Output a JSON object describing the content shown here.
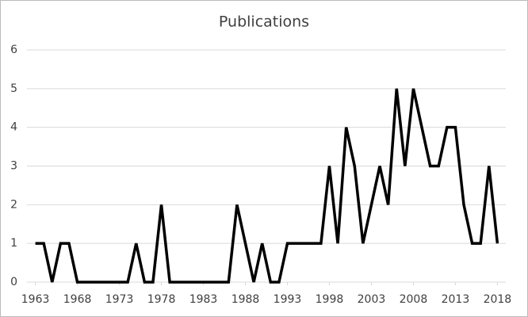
{
  "chart_data": {
    "type": "line",
    "title": "Publications",
    "x": [
      1963,
      1964,
      1965,
      1966,
      1967,
      1968,
      1969,
      1970,
      1971,
      1972,
      1973,
      1974,
      1975,
      1976,
      1977,
      1978,
      1979,
      1980,
      1981,
      1982,
      1983,
      1984,
      1985,
      1986,
      1987,
      1988,
      1989,
      1990,
      1991,
      1992,
      1993,
      1994,
      1995,
      1996,
      1997,
      1998,
      1999,
      2000,
      2001,
      2002,
      2003,
      2004,
      2005,
      2006,
      2007,
      2008,
      2009,
      2010,
      2011,
      2012,
      2013,
      2014,
      2015,
      2016,
      2017,
      2018
    ],
    "values": [
      1,
      1,
      0,
      1,
      1,
      0,
      0,
      0,
      0,
      0,
      0,
      0,
      1,
      0,
      0,
      2,
      0,
      0,
      0,
      0,
      0,
      0,
      0,
      0,
      2,
      1,
      0,
      1,
      0,
      0,
      1,
      1,
      1,
      1,
      1,
      3,
      1,
      4,
      3,
      1,
      2,
      3,
      2,
      5,
      3,
      5,
      4,
      3,
      3,
      4,
      4,
      2,
      1,
      1,
      3,
      1
    ],
    "color": "#000000",
    "xlim": [
      1962,
      2019
    ],
    "xticks": [
      1963,
      1968,
      1973,
      1978,
      1983,
      1988,
      1993,
      1998,
      2003,
      2008,
      2013,
      2018
    ],
    "ylim": [
      0,
      6
    ],
    "yticks": [
      0,
      1,
      2,
      3,
      4,
      5,
      6
    ],
    "grid": true
  }
}
